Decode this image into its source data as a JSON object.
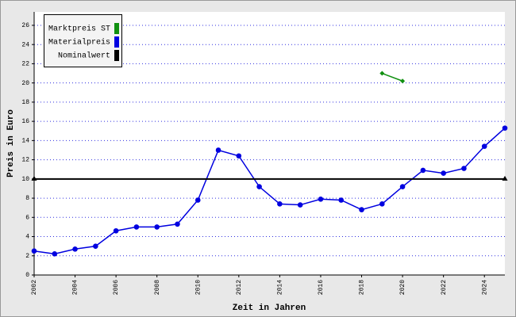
{
  "chart_data": {
    "type": "line",
    "x_label": "Zeit in Jahren",
    "y_label": "Preis in Euro",
    "x": [
      2002,
      2003,
      2004,
      2005,
      2006,
      2007,
      2008,
      2009,
      2010,
      2011,
      2012,
      2013,
      2014,
      2015,
      2016,
      2017,
      2018,
      2019,
      2020,
      2021,
      2022,
      2023,
      2024,
      2025
    ],
    "series": [
      {
        "name": "Marktpreis ST",
        "color": "#109010",
        "values": [
          null,
          null,
          null,
          null,
          null,
          null,
          null,
          null,
          null,
          null,
          null,
          null,
          null,
          null,
          null,
          null,
          null,
          21.0,
          20.2,
          null,
          null,
          null,
          null,
          null
        ]
      },
      {
        "name": "Materialpreis",
        "color": "#0000e0",
        "values": [
          2.5,
          2.2,
          2.7,
          3.0,
          4.6,
          5.0,
          5.0,
          5.3,
          7.8,
          13.0,
          12.4,
          9.2,
          7.4,
          7.3,
          7.9,
          7.8,
          6.8,
          7.4,
          9.2,
          10.9,
          10.6,
          11.1,
          13.4,
          15.3
        ]
      },
      {
        "name": "Nominalwert",
        "color": "#000000",
        "values": [
          10,
          10,
          10,
          10,
          10,
          10,
          10,
          10,
          10,
          10,
          10,
          10,
          10,
          10,
          10,
          10,
          10,
          10,
          10,
          10,
          10,
          10,
          10,
          10
        ]
      }
    ],
    "xlim": [
      2002,
      2025
    ],
    "xticks": [
      2002,
      2004,
      2006,
      2008,
      2010,
      2012,
      2014,
      2016,
      2018,
      2020,
      2022,
      2024
    ],
    "ylim": [
      0,
      27.4
    ],
    "yticks": [
      0,
      2,
      4,
      6,
      8,
      10,
      12,
      14,
      16,
      18,
      20,
      22,
      24,
      26
    ],
    "grid": true,
    "legend": "top-left"
  }
}
